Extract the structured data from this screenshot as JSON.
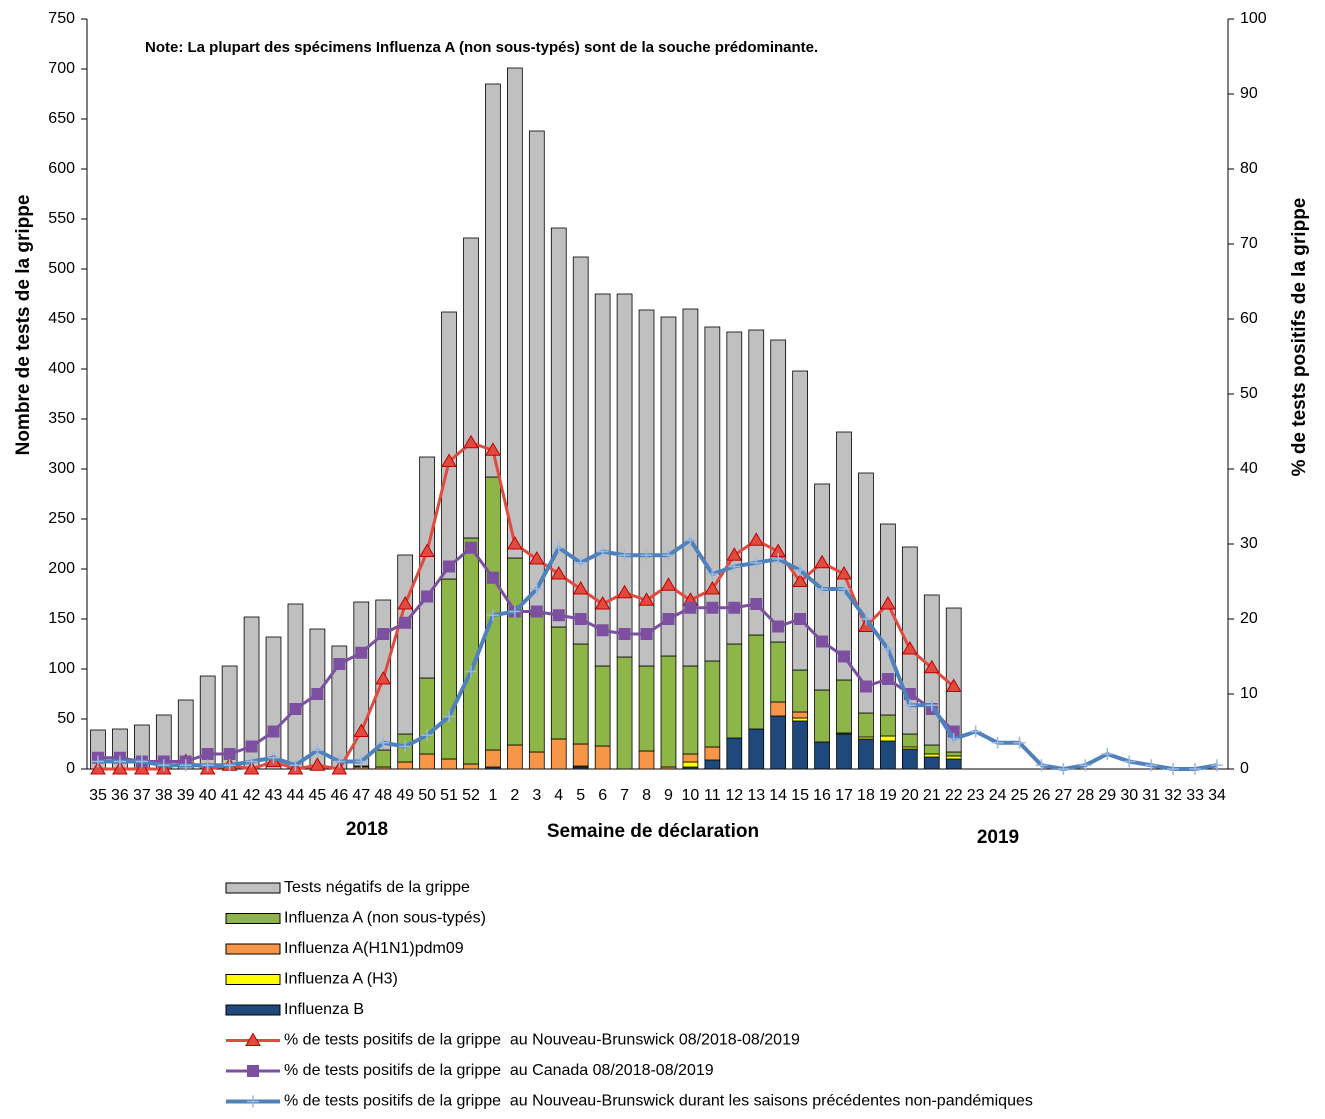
{
  "chart_data": {
    "type": "bar-line",
    "note": "Note: La plupart des spécimens Influenza A (non sous-typés) sont de la souche prédominante.",
    "x_label": "Semaine de déclaration",
    "y_label": "Nombre de tests de la grippe",
    "y2_label": "% de tests positifs de la grippe",
    "year_labels": [
      "2018",
      "2019"
    ],
    "categories": [
      "35",
      "36",
      "37",
      "38",
      "39",
      "40",
      "41",
      "42",
      "43",
      "44",
      "45",
      "46",
      "47",
      "48",
      "49",
      "50",
      "51",
      "52",
      "1",
      "2",
      "3",
      "4",
      "5",
      "6",
      "7",
      "8",
      "9",
      "10",
      "11",
      "12",
      "13",
      "14",
      "15",
      "16",
      "17",
      "18",
      "19",
      "20",
      "21",
      "22",
      "23",
      "24",
      "25",
      "26",
      "27",
      "28",
      "29",
      "30",
      "31",
      "32",
      "33",
      "34"
    ],
    "ylim": [
      0,
      750
    ],
    "yticks": [
      0,
      50,
      100,
      150,
      200,
      250,
      300,
      350,
      400,
      450,
      500,
      550,
      600,
      650,
      700,
      750
    ],
    "y2lim": [
      0,
      100
    ],
    "y2ticks": [
      0,
      10,
      20,
      30,
      40,
      50,
      60,
      70,
      80,
      90,
      100
    ],
    "series": [
      {
        "name": "Tests négatifs de la grippe",
        "type": "bar",
        "color": "#c0c0c0",
        "values": [
          39,
          40,
          44,
          54,
          69,
          93,
          103,
          152,
          132,
          165,
          140,
          123,
          164,
          150,
          179,
          221,
          267,
          300,
          393,
          490,
          483,
          399,
          387,
          372,
          363,
          356,
          339,
          357,
          334,
          312,
          305,
          302,
          299,
          206,
          248,
          240,
          191,
          187,
          150,
          144,
          null,
          null,
          null,
          null,
          null,
          null,
          null,
          null,
          null,
          null,
          null,
          null
        ]
      },
      {
        "name": "Influenza A (non sous-typés)",
        "type": "bar",
        "color": "#8db548",
        "values": [
          0,
          0,
          0,
          0,
          0,
          0,
          0,
          0,
          0,
          0,
          0,
          0,
          1,
          17,
          28,
          76,
          180,
          226,
          273,
          187,
          138,
          112,
          100,
          80,
          112,
          85,
          111,
          88,
          86,
          94,
          94,
          60,
          42,
          52,
          53,
          24,
          21,
          13,
          9,
          4,
          null,
          null,
          null,
          null,
          null,
          null,
          null,
          null,
          null,
          null,
          null,
          null
        ]
      },
      {
        "name": "Influenza A(H1N1)pdm09",
        "type": "bar",
        "color": "#f79646",
        "values": [
          0,
          0,
          0,
          0,
          0,
          0,
          0,
          0,
          0,
          0,
          0,
          0,
          2,
          2,
          7,
          15,
          10,
          5,
          17,
          24,
          17,
          30,
          22,
          23,
          0,
          18,
          2,
          8,
          13,
          0,
          0,
          14,
          6,
          0,
          0,
          0,
          0,
          0,
          0,
          0,
          null,
          null,
          null,
          null,
          null,
          null,
          null,
          null,
          null,
          null,
          null,
          null
        ]
      },
      {
        "name": "Influenza A (H3)",
        "type": "bar",
        "color": "#ffff00",
        "values": [
          0,
          0,
          0,
          0,
          0,
          0,
          0,
          0,
          0,
          0,
          0,
          0,
          0,
          0,
          0,
          0,
          0,
          0,
          0,
          0,
          0,
          0,
          1,
          0,
          0,
          0,
          0,
          5,
          0,
          0,
          0,
          0,
          3,
          0,
          1,
          2,
          5,
          2,
          3,
          3,
          null,
          null,
          null,
          null,
          null,
          null,
          null,
          null,
          null,
          null,
          null,
          null
        ]
      },
      {
        "name": "Influenza B",
        "type": "bar",
        "color": "#1f497d",
        "values": [
          0,
          0,
          0,
          0,
          0,
          0,
          0,
          0,
          0,
          0,
          0,
          0,
          0,
          0,
          0,
          0,
          0,
          0,
          2,
          0,
          0,
          0,
          2,
          0,
          0,
          0,
          0,
          2,
          9,
          31,
          40,
          53,
          48,
          27,
          35,
          30,
          28,
          20,
          12,
          10,
          null,
          null,
          null,
          null,
          null,
          null,
          null,
          null,
          null,
          null,
          null,
          null
        ]
      },
      {
        "name": "% de tests positifs de la grippe  au Nouveau-Brunswick 08/2018-08/2019",
        "type": "line",
        "axis": "y2",
        "color": "#e04a3f",
        "marker": "triangle",
        "values": [
          0,
          0,
          0,
          0,
          1,
          0,
          0.5,
          0,
          1,
          0,
          0.5,
          0,
          5,
          12,
          22,
          29,
          41,
          43.5,
          42.5,
          30,
          28,
          26,
          24,
          22,
          23.5,
          22.5,
          24.5,
          22.5,
          24,
          28.5,
          30.5,
          29,
          25,
          27.5,
          26,
          19,
          22,
          16,
          13.5,
          11,
          null,
          null,
          null,
          null,
          null,
          null,
          null,
          null,
          null,
          null,
          null,
          null
        ]
      },
      {
        "name": "% de tests positifs de la grippe  au Canada 08/2018-08/2019",
        "type": "line",
        "axis": "y2",
        "color": "#7d4fa0",
        "marker": "square",
        "values": [
          1.5,
          1.5,
          1,
          1,
          1,
          2,
          2,
          3,
          5,
          8,
          10,
          14,
          15.5,
          18,
          19.5,
          23,
          27,
          29.5,
          25.5,
          21,
          21,
          20.5,
          20,
          18.5,
          18,
          18,
          20,
          21.5,
          21.5,
          21.5,
          22,
          19,
          20,
          17,
          15,
          11,
          12,
          10,
          8,
          5,
          null,
          null,
          null,
          null,
          null,
          null,
          null,
          null,
          null,
          null,
          null,
          null
        ]
      },
      {
        "name": "% de tests positifs de la grippe  au Nouveau-Brunswick durant les saisons précédentes non-pandémiques",
        "type": "line",
        "axis": "y2",
        "color": "#4f81bd",
        "marker": "plus",
        "values": [
          1,
          1,
          1,
          0.5,
          0.5,
          0.5,
          0.5,
          1,
          1.5,
          0.5,
          2.5,
          1,
          1,
          3.5,
          3,
          4.5,
          7,
          13,
          20.5,
          21,
          24,
          29.5,
          27.5,
          29,
          28.5,
          28.5,
          28.5,
          30.5,
          26,
          27,
          27.5,
          28,
          26.5,
          24,
          24,
          20,
          16,
          8.5,
          8.5,
          4,
          5,
          3.5,
          3.5,
          0.5,
          0,
          0.5,
          2,
          1,
          0.5,
          0,
          0,
          0.5
        ]
      }
    ]
  }
}
